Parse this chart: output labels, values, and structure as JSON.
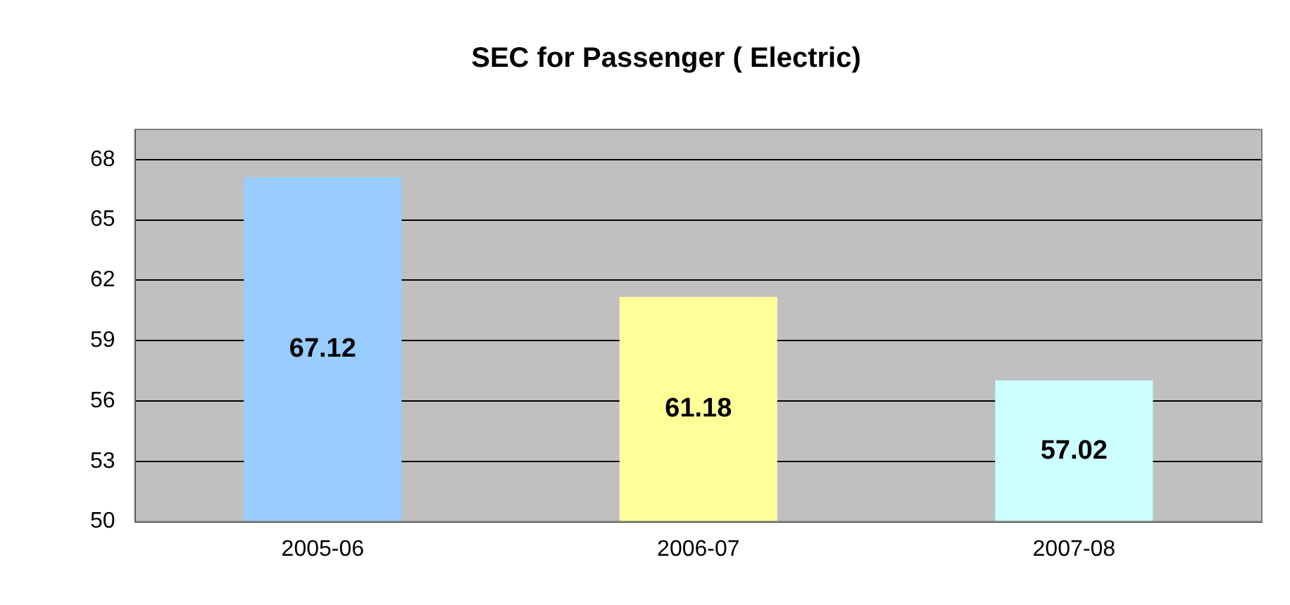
{
  "chart_data": {
    "type": "bar",
    "title": "SEC for Passenger ( Electric)",
    "categories": [
      "2005-06",
      "2006-07",
      "2007-08"
    ],
    "values": [
      67.12,
      61.18,
      57.02
    ],
    "colors": [
      "#99ccff",
      "#ffff99",
      "#ccffff"
    ],
    "ylim": [
      50,
      69.5
    ],
    "yticks": [
      50,
      53,
      56,
      59,
      62,
      65,
      68
    ],
    "grid": "y",
    "legend": false,
    "data_labels": true
  }
}
